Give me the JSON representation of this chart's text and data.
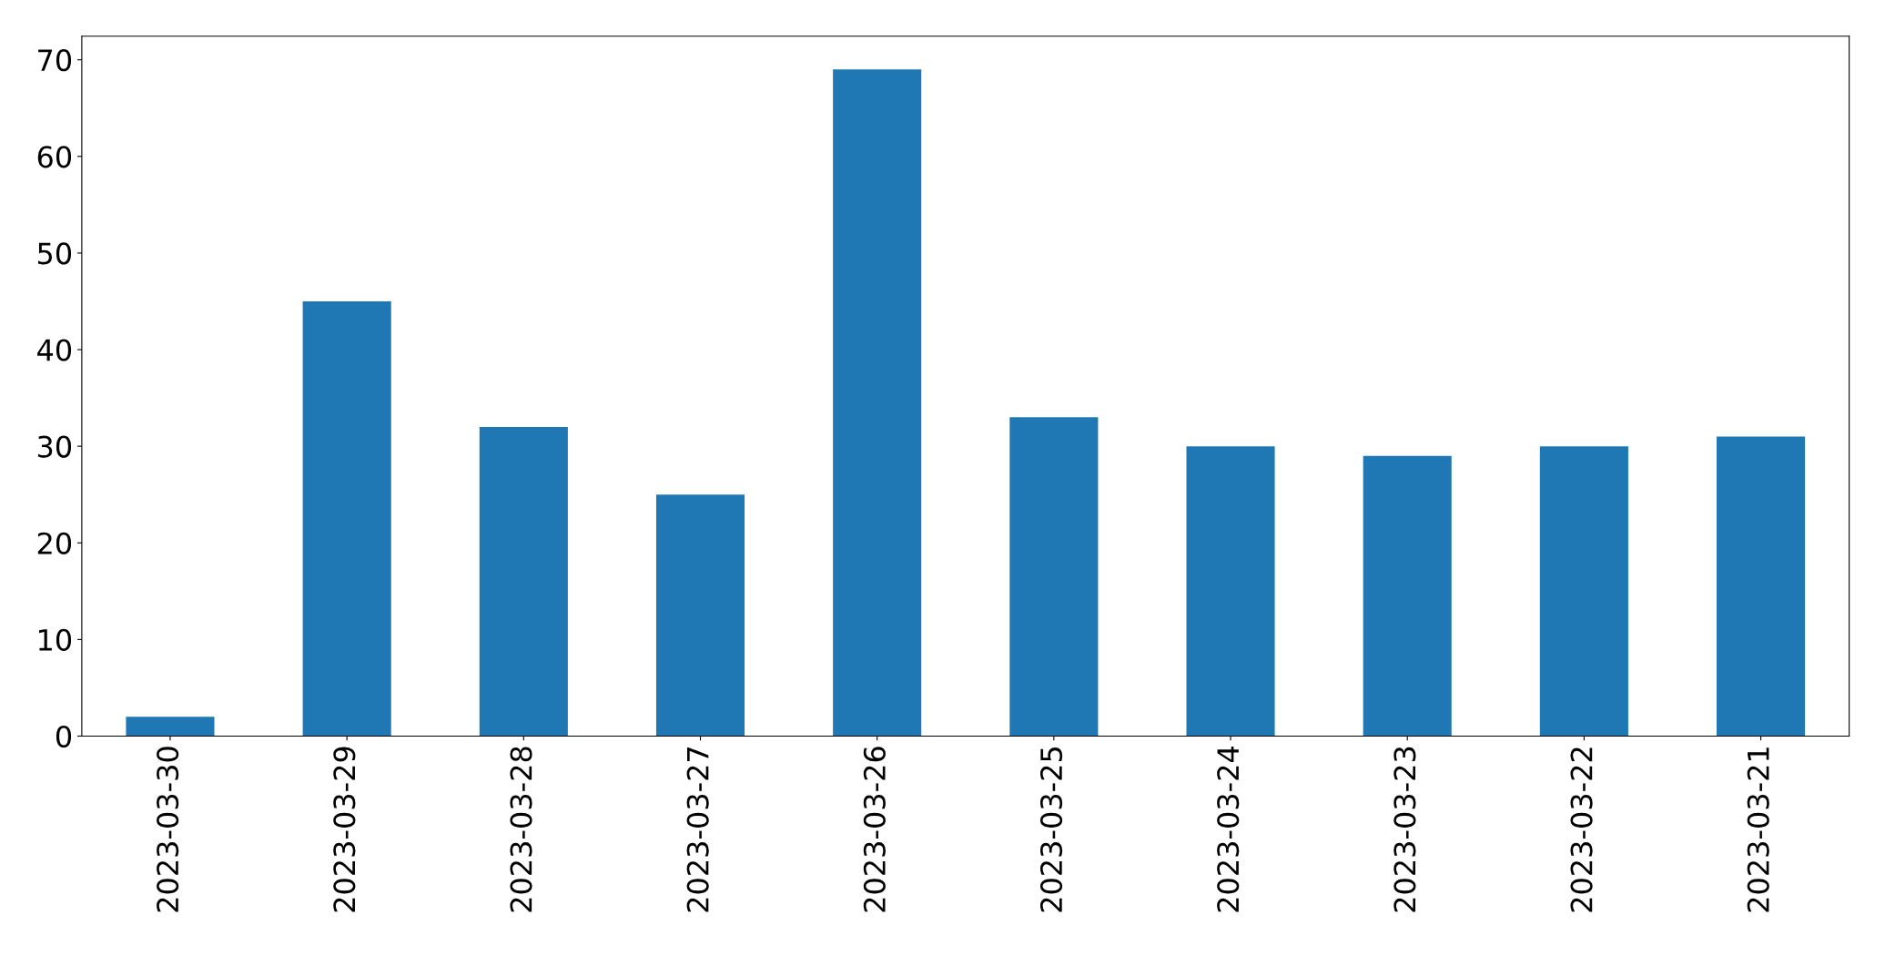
{
  "chart_data": {
    "type": "bar",
    "categories": [
      "2023-03-30",
      "2023-03-29",
      "2023-03-28",
      "2023-03-27",
      "2023-03-26",
      "2023-03-25",
      "2023-03-24",
      "2023-03-23",
      "2023-03-22",
      "2023-03-21"
    ],
    "values": [
      2,
      45,
      32,
      25,
      69,
      33,
      30,
      29,
      30,
      31
    ],
    "color": "#1f77b4",
    "ylim": [
      0,
      72.45
    ],
    "yticks": [
      0,
      10,
      20,
      30,
      40,
      50,
      60,
      70
    ],
    "grid": false,
    "legend": false
  }
}
